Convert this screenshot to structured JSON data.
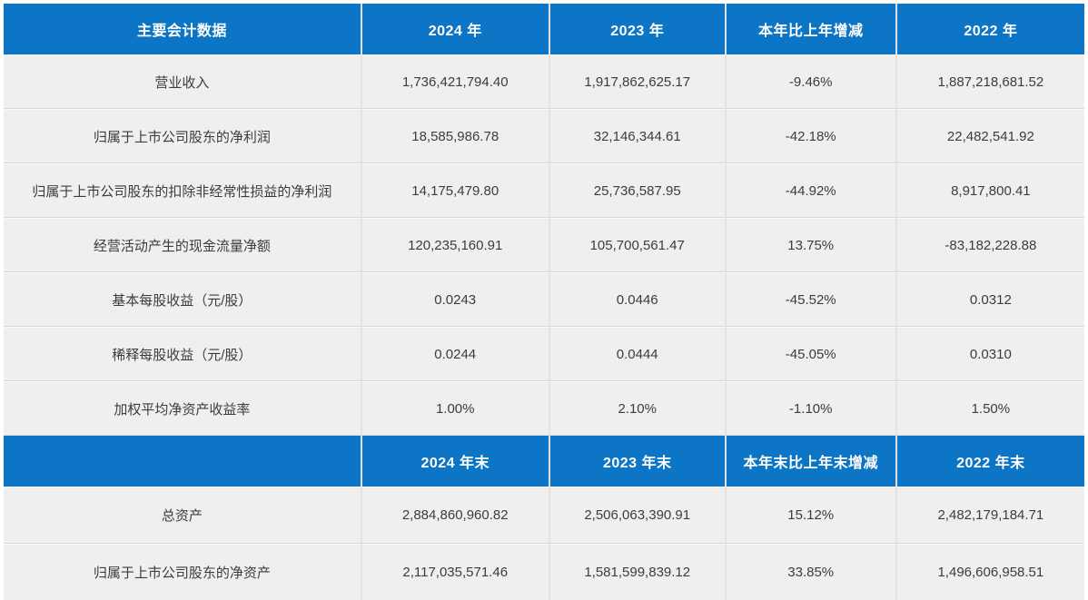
{
  "table": {
    "header1": [
      "主要会计数据",
      "2024 年",
      "2023 年",
      "本年比上年增减",
      "2022 年"
    ],
    "rows1": [
      [
        "营业收入",
        "1,736,421,794.40",
        "1,917,862,625.17",
        "-9.46%",
        "1,887,218,681.52"
      ],
      [
        "归属于上市公司股东的净利润",
        "18,585,986.78",
        "32,146,344.61",
        "-42.18%",
        "22,482,541.92"
      ],
      [
        "归属于上市公司股东的扣除非经常性损益的净利润",
        "14,175,479.80",
        "25,736,587.95",
        "-44.92%",
        "8,917,800.41"
      ],
      [
        "经营活动产生的现金流量净额",
        "120,235,160.91",
        "105,700,561.47",
        "13.75%",
        "-83,182,228.88"
      ],
      [
        "基本每股收益（元/股）",
        "0.0243",
        "0.0446",
        "-45.52%",
        "0.0312"
      ],
      [
        "稀释每股收益（元/股）",
        "0.0244",
        "0.0444",
        "-45.05%",
        "0.0310"
      ],
      [
        "加权平均净资产收益率",
        "1.00%",
        "2.10%",
        "-1.10%",
        "1.50%"
      ]
    ],
    "header2": [
      "",
      "2024 年末",
      "2023 年末",
      "本年末比上年末增减",
      "2022 年末"
    ],
    "rows2": [
      [
        "总资产",
        "2,884,860,960.82",
        "2,506,063,390.91",
        "15.12%",
        "2,482,179,184.71"
      ],
      [
        "归属于上市公司股东的净资产",
        "2,117,035,571.46",
        "1,581,599,839.12",
        "33.85%",
        "1,496,606,958.51"
      ]
    ]
  },
  "colors": {
    "header_bg": "#0d75c5",
    "header_text": "#ffffff",
    "row_bg": "#efefef",
    "body_text": "#3c3c3c"
  }
}
